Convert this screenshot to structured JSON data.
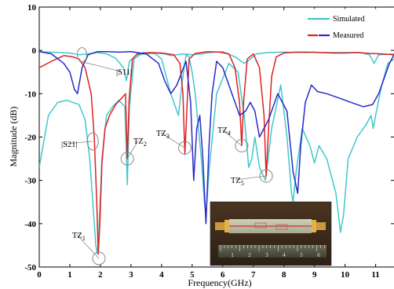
{
  "chart_data": {
    "type": "line",
    "xlabel": "Frequency(GHz)",
    "ylabel": "Magnitude (dB)",
    "xlim": [
      0,
      11.6
    ],
    "ylim": [
      -50,
      10
    ],
    "x_ticks": [
      "0",
      "1",
      "2",
      "3",
      "4",
      "5",
      "6",
      "7",
      "8",
      "9",
      "10",
      "11"
    ],
    "y_ticks": [
      "10",
      "0",
      "-10",
      "-20",
      "-30",
      "-40",
      "-50"
    ],
    "grid": false,
    "legend_position": "top-right",
    "series": [
      {
        "name": "Simulated",
        "color": "#40c8cc",
        "curve": "S21",
        "x": [
          0,
          0.3,
          0.6,
          0.9,
          1.1,
          1.3,
          1.5,
          1.65,
          1.75,
          1.85,
          1.9,
          1.95,
          2.05,
          2.2,
          2.4,
          2.6,
          2.8,
          2.88,
          2.95,
          3.1,
          3.4,
          3.8,
          4.0,
          4.3,
          4.55,
          4.7,
          4.8,
          4.9,
          5.0,
          5.1,
          5.3,
          5.4,
          5.45,
          5.55,
          5.8,
          6.2,
          6.5,
          6.7,
          6.85,
          6.95,
          7.05,
          7.2,
          7.4,
          7.6,
          7.9,
          8.1,
          8.25,
          8.3,
          8.4,
          8.6,
          8.85,
          9.0,
          9.15,
          9.4,
          9.7,
          9.85,
          9.95,
          10.1,
          10.4,
          10.7,
          10.85,
          10.92,
          11.0,
          11.2,
          11.4,
          11.6
        ],
        "y": [
          -27,
          -15,
          -12,
          -11.5,
          -12,
          -12.5,
          -16,
          -25,
          -35,
          -45,
          -47,
          -42,
          -25,
          -15,
          -13,
          -11.5,
          -13,
          -31,
          -13,
          -2,
          -0.5,
          -0.8,
          -2,
          -10,
          -15,
          -6,
          -1,
          -1.5,
          -5,
          -10,
          -25,
          -35,
          -38,
          -28,
          -10,
          -3,
          -5,
          -15,
          -27,
          -25,
          -20,
          -27,
          -30,
          -18,
          -8,
          -20,
          -33,
          -35,
          -28,
          -18,
          -22,
          -26,
          -22,
          -25,
          -33,
          -42,
          -38,
          -25,
          -20,
          -17,
          -15,
          -18,
          -15,
          -8,
          -3,
          -2
        ]
      },
      {
        "name": "",
        "color": "#40c8cc",
        "curve": "S11",
        "x": [
          0,
          1.0,
          1.3,
          1.6,
          1.9,
          2.2,
          2.5,
          2.75,
          2.85,
          2.95,
          3.2,
          3.8,
          4.1,
          4.3,
          4.7,
          5.0,
          5.3,
          5.6,
          6.0,
          6.4,
          6.7,
          6.9,
          7.1,
          7.5,
          8.0,
          8.8,
          9.0,
          9.2,
          10.5,
          10.8,
          10.95,
          11.1,
          11.6
        ],
        "y": [
          -0.3,
          -0.6,
          -1.0,
          -0.8,
          -0.5,
          -0.8,
          -1.8,
          -4,
          -7,
          -2.5,
          -1,
          -0.6,
          -0.8,
          -1.2,
          -0.8,
          -1.0,
          -0.8,
          -0.5,
          -0.3,
          -1.5,
          -3,
          -2,
          -0.8,
          -0.5,
          -0.4,
          -0.5,
          -0.4,
          -0.5,
          -0.5,
          -1.0,
          -3,
          -1.0,
          -0.8
        ]
      },
      {
        "name": "Measured",
        "color": "#e02020",
        "curve": "S21",
        "x": [
          0,
          0.4,
          0.8,
          1.1,
          1.3,
          1.5,
          1.7,
          1.8,
          1.88,
          1.93,
          1.98,
          2.05,
          2.15,
          2.3,
          2.5,
          2.7,
          2.82,
          2.88,
          2.94,
          3.05,
          3.2,
          3.6,
          4.0,
          4.4,
          4.6,
          4.7,
          4.76,
          4.82,
          4.9,
          5.1,
          5.5,
          5.9,
          6.2,
          6.4,
          6.55,
          6.62,
          6.68,
          6.8,
          7.0,
          7.2,
          7.35,
          7.42,
          7.5,
          7.6,
          7.75,
          8.0,
          8.4,
          8.8,
          9.2,
          9.6,
          10.0,
          10.4,
          10.8,
          11.2,
          11.6
        ],
        "y": [
          -4,
          -2.5,
          -1.2,
          -1.5,
          -2,
          -4,
          -10,
          -20,
          -35,
          -47,
          -40,
          -26,
          -18,
          -15,
          -12.5,
          -11,
          -10,
          -25,
          -11,
          -2,
          -0.8,
          -0.5,
          -0.6,
          -1.0,
          -3,
          -10,
          -24,
          -15,
          -2,
          -0.7,
          -0.3,
          -0.4,
          -0.8,
          -4,
          -12,
          -22,
          -12,
          -2,
          -0.8,
          -4,
          -15,
          -29,
          -18,
          -6,
          -1.5,
          -0.6,
          -0.4,
          -0.4,
          -0.5,
          -0.6,
          -0.6,
          -0.5,
          -0.7,
          -0.8,
          -1.0
        ]
      },
      {
        "name": "",
        "color": "#2a2ac8",
        "curve": "S11",
        "x": [
          0,
          0.4,
          0.8,
          1.0,
          1.15,
          1.25,
          1.4,
          1.6,
          1.9,
          2.2,
          2.6,
          3.0,
          3.5,
          3.9,
          4.1,
          4.3,
          4.5,
          4.8,
          4.95,
          5.05,
          5.15,
          5.25,
          5.35,
          5.45,
          5.55,
          5.65,
          5.8,
          6.0,
          6.2,
          6.4,
          6.55,
          6.75,
          6.9,
          7.05,
          7.2,
          7.5,
          7.8,
          8.1,
          8.3,
          8.45,
          8.55,
          8.7,
          8.9,
          9.1,
          9.4,
          9.8,
          10.2,
          10.6,
          10.9,
          11.1,
          11.3,
          11.45,
          11.6
        ],
        "y": [
          -0.3,
          -0.8,
          -3,
          -5,
          -9,
          -10,
          -4,
          -1,
          -0.3,
          -0.3,
          -0.4,
          -0.3,
          -0.8,
          -3,
          -7,
          -10,
          -8,
          -2.5,
          -12,
          -30,
          -18,
          -15,
          -25,
          -40,
          -22,
          -10,
          -2.5,
          -4,
          -8,
          -12,
          -15,
          -14,
          -12,
          -14,
          -20,
          -16,
          -10,
          -14,
          -28,
          -33,
          -22,
          -12,
          -8,
          -9.5,
          -10,
          -11,
          -12,
          -13,
          -12.5,
          -10,
          -6,
          -3,
          -1
        ]
      }
    ],
    "legend": [
      {
        "label": "Simulated",
        "color": "#40c8cc"
      },
      {
        "label": "Measured",
        "color": "#e02020"
      },
      {
        "label": "",
        "color": "#2a2ac8"
      }
    ],
    "annotations": [
      {
        "label": "|S11|",
        "x": 1.4,
        "y": -1.0
      },
      {
        "label": "|S21|",
        "x": 1.75,
        "y": -21
      },
      {
        "label": "TZ1",
        "x": 1.95,
        "y": -48
      },
      {
        "label": "TZ2",
        "x": 2.88,
        "y": -25
      },
      {
        "label": "TZ3",
        "x": 4.76,
        "y": -22.5
      },
      {
        "label": "TZ4",
        "x": 6.62,
        "y": -22
      },
      {
        "label": "TZ5",
        "x": 7.42,
        "y": -29
      }
    ],
    "inset": {
      "kind": "photo",
      "ruler_numbers": [
        "1",
        "2",
        "3",
        "4",
        "5",
        "6"
      ]
    }
  }
}
